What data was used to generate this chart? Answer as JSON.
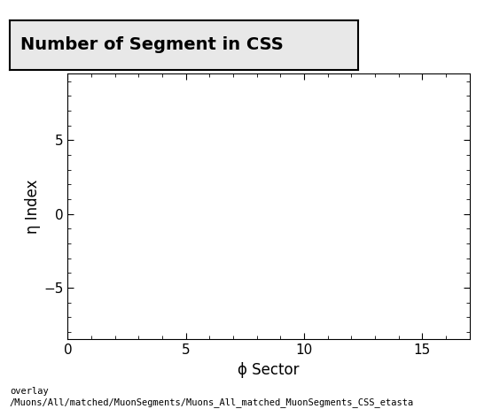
{
  "title": "Number of Segment in CSS",
  "xlabel": "ϕ Sector",
  "ylabel": "η Index",
  "xlim": [
    0,
    17
  ],
  "ylim": [
    -8.5,
    9.5
  ],
  "xticks": [
    0,
    5,
    10,
    15
  ],
  "yticks": [
    -5,
    0,
    5
  ],
  "footer_line1": "overlay",
  "footer_line2": "/Muons/All/matched/MuonSegments/Muons_All_matched_MuonSegments_CSS_etasta",
  "background_color": "#ffffff",
  "title_fontsize": 14,
  "axis_label_fontsize": 12,
  "tick_fontsize": 11,
  "footer_fontsize": 7.5,
  "title_bg_color": "#e8e8e8"
}
